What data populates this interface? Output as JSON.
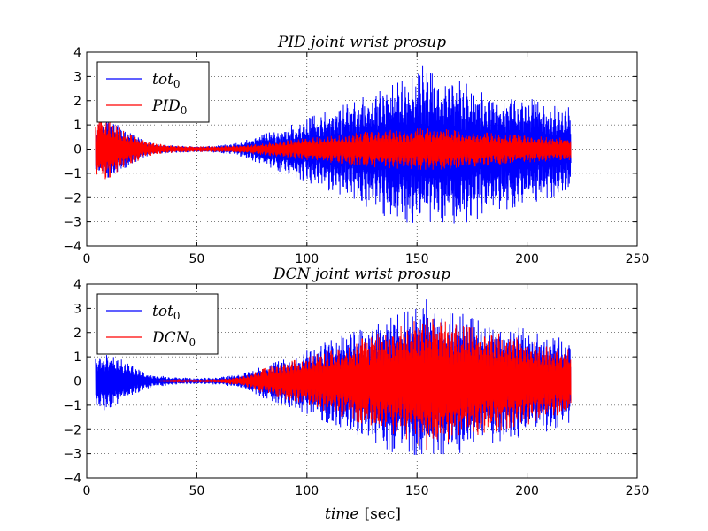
{
  "figure": {
    "xlabel_var": "time",
    "xlabel_unit": "[sec]"
  },
  "chart_data": [
    {
      "type": "line",
      "title": "PID  joint wrist prosup",
      "xlim": [
        0,
        250
      ],
      "ylim": [
        -4,
        4
      ],
      "xticks": [
        0,
        50,
        100,
        150,
        200,
        250
      ],
      "yticks": [
        -4,
        -3,
        -2,
        -1,
        0,
        1,
        2,
        3,
        4
      ],
      "grid": true,
      "legend_position": "top-left",
      "x_range_of_data": [
        4,
        220
      ],
      "series": [
        {
          "name": "tot",
          "subscript": "0",
          "color": "#0000ff",
          "envelope": {
            "x": [
              4,
              5,
              8,
              11,
              14,
              18,
              22,
              26,
              30,
              40,
              50,
              60,
              68,
              75,
              80,
              90,
              100,
              110,
              120,
              130,
              140,
              150,
              153,
              160,
              170,
              180,
              190,
              200,
              210,
              215,
              220
            ],
            "upper": [
              0.9,
              1.15,
              1.2,
              1.15,
              1.0,
              0.75,
              0.55,
              0.35,
              0.25,
              0.15,
              0.12,
              0.15,
              0.25,
              0.45,
              0.6,
              0.9,
              1.25,
              1.65,
              2.0,
              2.25,
              2.7,
              3.0,
              3.5,
              2.8,
              2.8,
              2.4,
              2.25,
              2.15,
              1.75,
              1.8,
              1.7
            ],
            "lower": [
              -0.9,
              -1.15,
              -1.2,
              -1.15,
              -1.0,
              -0.75,
              -0.55,
              -0.35,
              -0.25,
              -0.15,
              -0.12,
              -0.15,
              -0.25,
              -0.45,
              -0.7,
              -1.0,
              -1.35,
              -1.75,
              -2.1,
              -2.5,
              -3.0,
              -3.05,
              -3.0,
              -3.0,
              -3.1,
              -2.8,
              -2.5,
              -2.25,
              -2.05,
              -1.9,
              -1.9
            ]
          }
        },
        {
          "name": "PID",
          "subscript": "0",
          "color": "#ff0000",
          "envelope": {
            "x": [
              4,
              5,
              8,
              11,
              14,
              18,
              22,
              26,
              30,
              40,
              50,
              60,
              68,
              75,
              80,
              90,
              100,
              110,
              120,
              130,
              140,
              150,
              160,
              170,
              180,
              190,
              200,
              210,
              220
            ],
            "upper": [
              0.9,
              1.15,
              1.2,
              1.15,
              1.0,
              0.75,
              0.55,
              0.35,
              0.25,
              0.15,
              0.12,
              0.12,
              0.15,
              0.2,
              0.25,
              0.35,
              0.45,
              0.55,
              0.65,
              0.75,
              0.8,
              0.85,
              0.85,
              0.75,
              0.7,
              0.6,
              0.55,
              0.5,
              0.45
            ],
            "lower": [
              -0.9,
              -1.15,
              -1.25,
              -1.15,
              -1.0,
              -0.75,
              -0.55,
              -0.35,
              -0.25,
              -0.15,
              -0.12,
              -0.12,
              -0.15,
              -0.2,
              -0.25,
              -0.35,
              -0.45,
              -0.55,
              -0.65,
              -0.75,
              -0.8,
              -0.85,
              -0.85,
              -0.75,
              -0.7,
              -0.6,
              -0.55,
              -0.5,
              -0.45
            ]
          }
        }
      ]
    },
    {
      "type": "line",
      "title": "DCN  joint wrist prosup",
      "xlim": [
        0,
        250
      ],
      "ylim": [
        -4,
        4
      ],
      "xticks": [
        0,
        50,
        100,
        150,
        200,
        250
      ],
      "yticks": [
        -4,
        -3,
        -2,
        -1,
        0,
        1,
        2,
        3,
        4
      ],
      "grid": true,
      "legend_position": "top-left",
      "x_range_of_data": [
        4,
        220
      ],
      "series": [
        {
          "name": "tot",
          "subscript": "0",
          "color": "#0000ff",
          "envelope": {
            "x": [
              4,
              5,
              8,
              11,
              14,
              18,
              22,
              26,
              30,
              40,
              50,
              60,
              68,
              75,
              80,
              90,
              100,
              110,
              120,
              130,
              140,
              150,
              153,
              160,
              170,
              180,
              190,
              200,
              210,
              215,
              220
            ],
            "upper": [
              0.9,
              1.15,
              1.2,
              1.15,
              1.0,
              0.75,
              0.55,
              0.35,
              0.25,
              0.15,
              0.12,
              0.15,
              0.25,
              0.45,
              0.6,
              0.9,
              1.25,
              1.65,
              2.0,
              2.25,
              2.7,
              3.0,
              3.5,
              2.8,
              2.8,
              2.4,
              2.25,
              2.15,
              1.75,
              1.8,
              1.7
            ],
            "lower": [
              -0.9,
              -1.15,
              -1.2,
              -1.15,
              -1.0,
              -0.75,
              -0.55,
              -0.35,
              -0.25,
              -0.15,
              -0.12,
              -0.15,
              -0.25,
              -0.45,
              -0.7,
              -1.0,
              -1.35,
              -1.75,
              -2.1,
              -2.5,
              -3.0,
              -3.05,
              -3.0,
              -3.0,
              -3.1,
              -2.8,
              -2.5,
              -2.25,
              -2.05,
              -1.9,
              -1.9
            ]
          }
        },
        {
          "name": "DCN",
          "subscript": "0",
          "color": "#ff0000",
          "envelope": {
            "x": [
              4,
              30,
              40,
              50,
              60,
              68,
              75,
              80,
              90,
              100,
              110,
              120,
              130,
              140,
              150,
              153,
              160,
              170,
              180,
              190,
              200,
              210,
              220
            ],
            "upper": [
              0.0,
              0.0,
              0.02,
              0.05,
              0.08,
              0.15,
              0.3,
              0.5,
              0.75,
              1.0,
              1.3,
              1.6,
              1.9,
              2.2,
              2.5,
              2.6,
              2.5,
              2.3,
              2.1,
              1.9,
              1.7,
              1.4,
              1.3
            ],
            "lower": [
              0.0,
              0.0,
              -0.02,
              -0.05,
              -0.08,
              -0.15,
              -0.3,
              -0.5,
              -0.75,
              -1.0,
              -1.3,
              -1.6,
              -1.9,
              -2.2,
              -2.6,
              -2.9,
              -2.6,
              -2.4,
              -2.2,
              -2.0,
              -1.8,
              -1.6,
              -1.4
            ]
          }
        }
      ]
    }
  ]
}
